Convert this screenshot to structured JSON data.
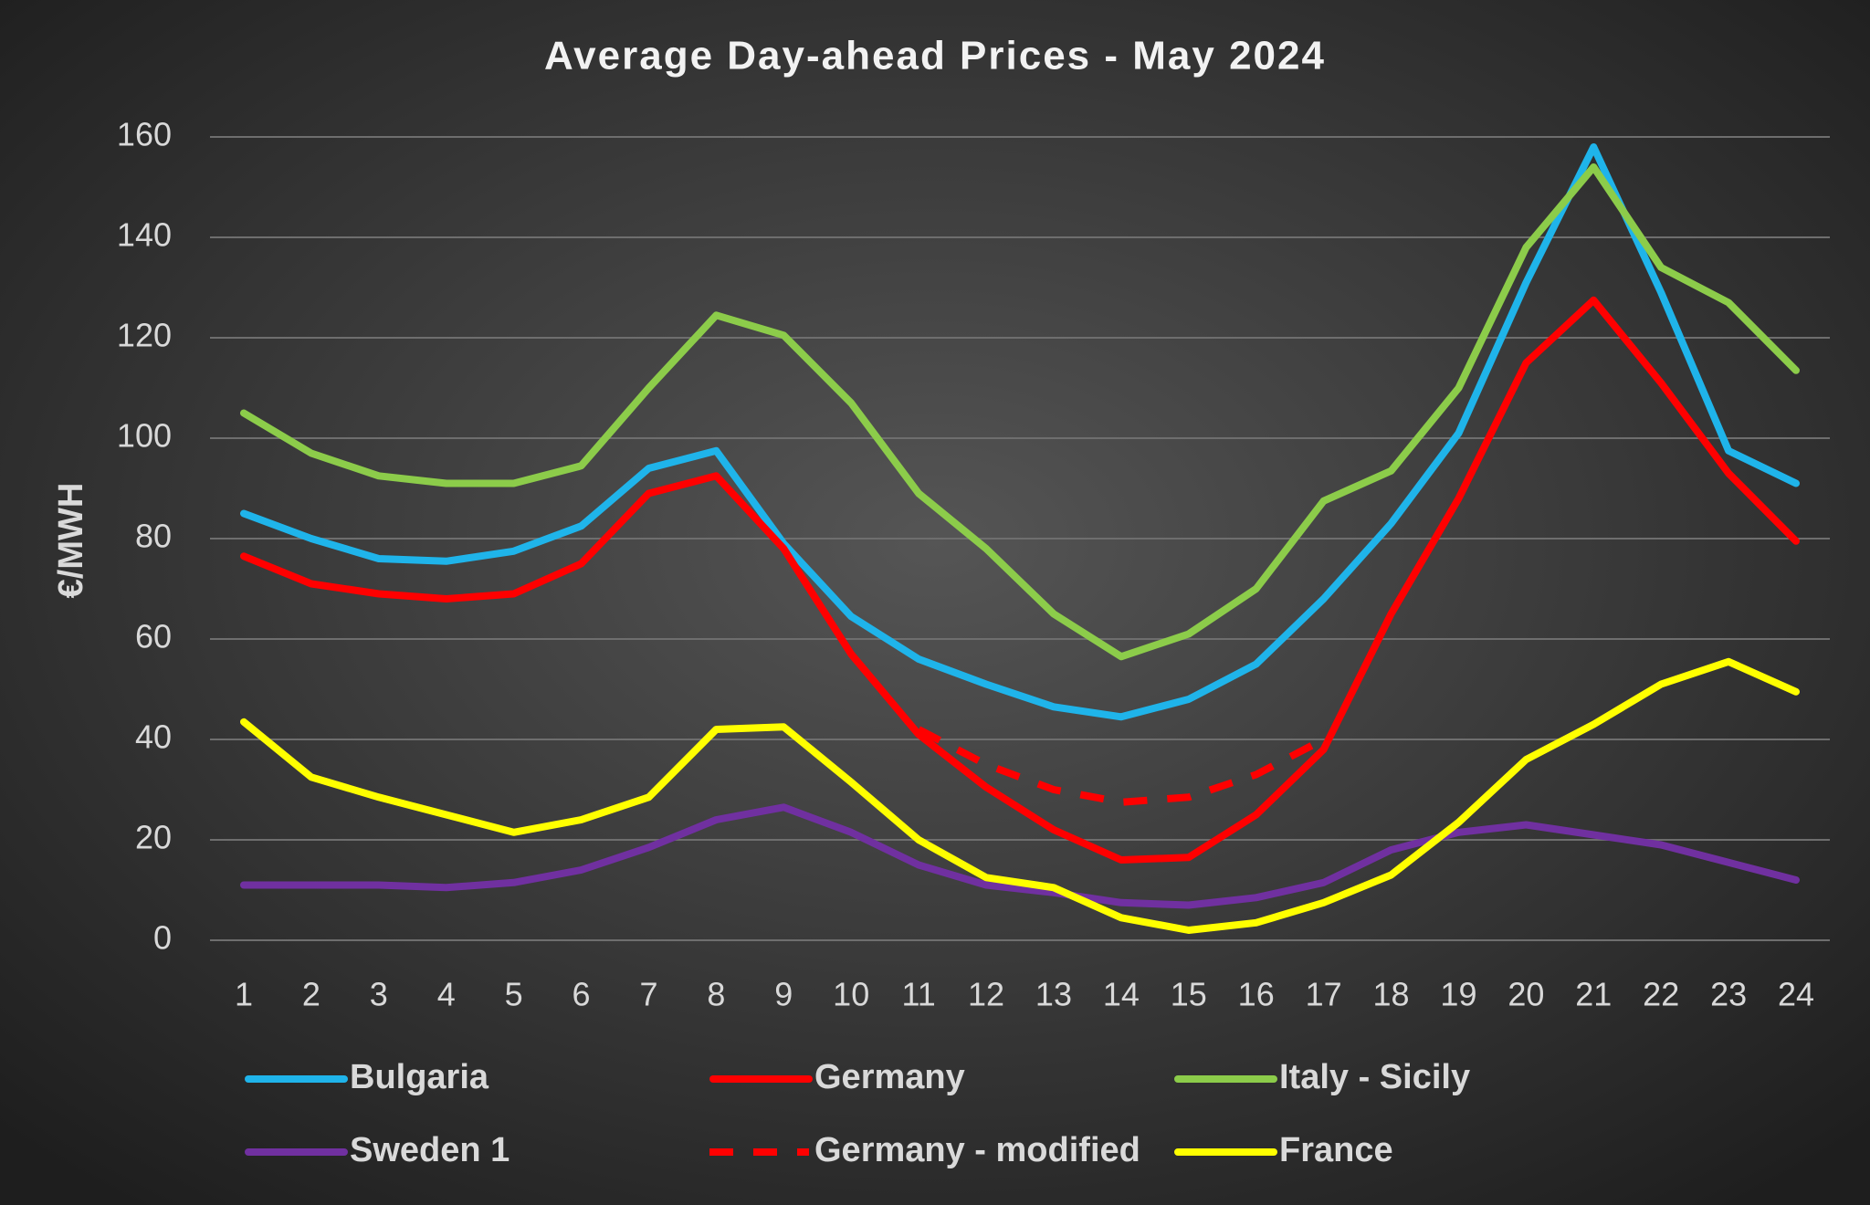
{
  "chart_data": {
    "type": "line",
    "title": "Average Day-ahead Prices - May 2024",
    "y_label": "€/MWH",
    "categories": [
      1,
      2,
      3,
      4,
      5,
      6,
      7,
      8,
      9,
      10,
      11,
      12,
      13,
      14,
      15,
      16,
      17,
      18,
      19,
      20,
      21,
      22,
      23,
      24
    ],
    "ylim": [
      0,
      160
    ],
    "yticks": [
      0,
      20,
      40,
      60,
      80,
      100,
      120,
      140,
      160
    ],
    "grid": true,
    "legend": "bottom",
    "series": [
      {
        "name": "Bulgaria",
        "color": "#1fb4ea",
        "values": [
          85,
          80,
          76,
          75.5,
          77.5,
          82.5,
          94,
          97.5,
          79,
          64.5,
          56,
          51,
          46.5,
          44.5,
          48,
          55,
          68,
          83,
          101,
          131,
          158,
          129,
          97.5,
          91
        ]
      },
      {
        "name": "Germany",
        "color": "#ff0000",
        "values": [
          76.5,
          71,
          69,
          68,
          69,
          75,
          89,
          92.5,
          78,
          57,
          41,
          30.5,
          22,
          16,
          16.5,
          25,
          38,
          65,
          88,
          115,
          127.5,
          111,
          93,
          79.5
        ]
      },
      {
        "name": "Italy - Sicily",
        "color": "#8ccc4a",
        "values": [
          105,
          97,
          92.5,
          91,
          91,
          94.5,
          110,
          124.5,
          120.5,
          107,
          89,
          78,
          65,
          56.5,
          61,
          70,
          87.5,
          93.5,
          110,
          138,
          154,
          134,
          127,
          113.5
        ]
      },
      {
        "name": "Sweden 1",
        "color": "#7030a0",
        "values": [
          11,
          11,
          11,
          10.5,
          11.5,
          14,
          18.5,
          24,
          26.5,
          21.5,
          15,
          11,
          9.5,
          7.5,
          7,
          8.5,
          11.5,
          18,
          21.5,
          23,
          21,
          19,
          15.5,
          12
        ]
      },
      {
        "name": "Germany - modified",
        "color": "#ff0000",
        "line_style": "dashed",
        "values": [
          null,
          null,
          null,
          null,
          null,
          null,
          null,
          null,
          null,
          null,
          42,
          35,
          30,
          27.5,
          28.5,
          33,
          40,
          null,
          null,
          null,
          null,
          null,
          null,
          null
        ]
      },
      {
        "name": "France",
        "color": "#ffff00",
        "values": [
          43.5,
          32.5,
          28.5,
          25,
          21.5,
          24,
          28.5,
          42,
          42.5,
          31.5,
          20,
          12.5,
          10.5,
          4.5,
          2,
          3.5,
          7.5,
          13,
          23.5,
          36,
          43,
          51,
          55.5,
          49.5
        ]
      }
    ]
  }
}
